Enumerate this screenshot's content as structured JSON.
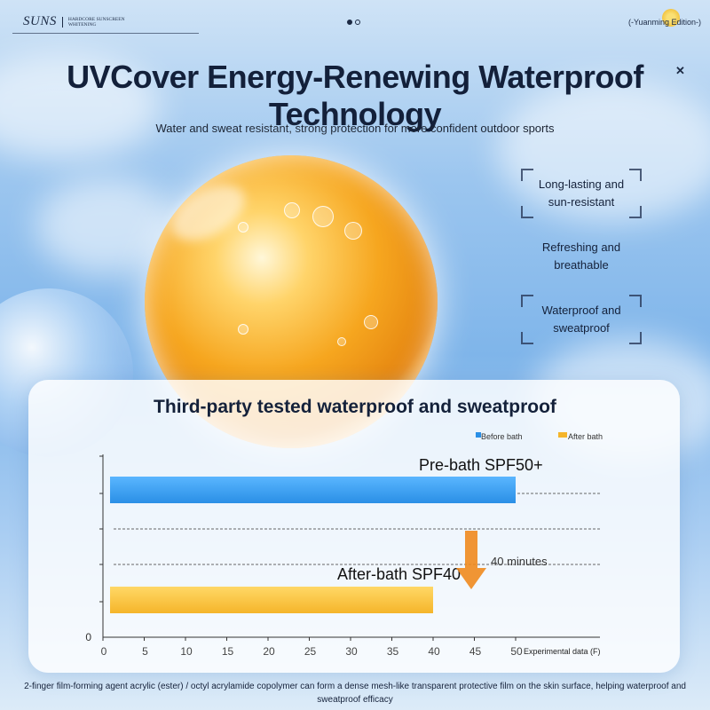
{
  "brand": {
    "name": "SUNS",
    "sub_line1": "HARDCORE SUNSCREEN",
    "sub_line2": "WHITENING",
    "edition": "(-Yuanming Edition-)"
  },
  "header": {
    "title": "UVCover Energy-Renewing Waterproof Technology",
    "subtitle": "Water and sweat resistant, strong protection for more confident outdoor sports"
  },
  "features": [
    {
      "line1": "Long-lasting and",
      "line2": "sun-resistant"
    },
    {
      "line1": "Refreshing and",
      "line2": "breathable"
    },
    {
      "line1": "Waterproof and",
      "line2": "sweatproof"
    }
  ],
  "colors": {
    "before": "#2a8fe6",
    "after": "#f5b52a",
    "arrow": "#f08a1e"
  },
  "chart_data": {
    "type": "bar",
    "orientation": "horizontal",
    "title": "Third-party tested waterproof and sweatproof",
    "xlabel": "Experimental data (F)",
    "xlim": [
      0,
      52
    ],
    "xticks": [
      0,
      5,
      10,
      15,
      20,
      25,
      30,
      35,
      40,
      45,
      50
    ],
    "ytick_zero": "0",
    "grid": "dashed horizontal lines",
    "legend_position": "top-right",
    "series": [
      {
        "name": "Before bath",
        "value": 50,
        "label": "Pre-bath SPF50+",
        "color": "#2a8fe6"
      },
      {
        "name": "After bath",
        "value": 40,
        "label": "After-bath SPF40",
        "color": "#f5b52a"
      }
    ],
    "annotation": "40 minutes"
  },
  "footer": {
    "text": "2-finger film-forming agent acrylic (ester) / octyl acrylamide copolymer can form a dense mesh-like transparent protective film on the skin surface, helping waterproof and sweatproof efficacy"
  }
}
